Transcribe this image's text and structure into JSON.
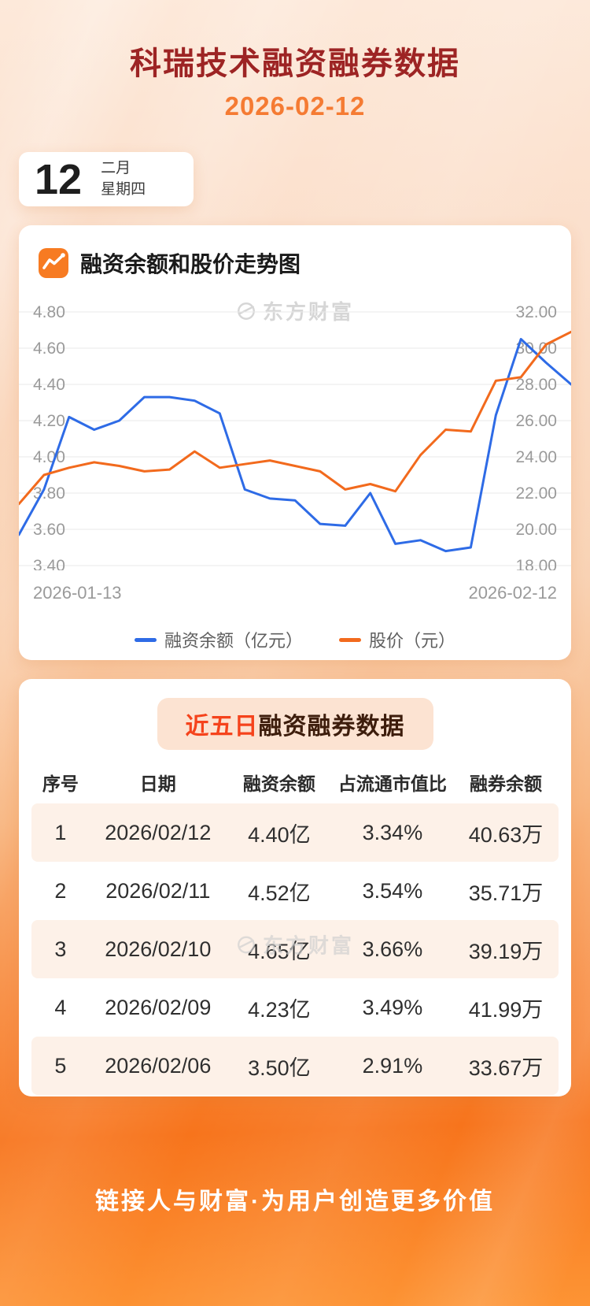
{
  "page": {
    "title": "科瑞技术融资融券数据",
    "date": "2026-02-12"
  },
  "colors": {
    "title": "#9d2424",
    "accent_orange": "#f7671f",
    "highlight_red": "#f5431c",
    "line_blue": "#2e6be6",
    "line_orange": "#f26a1d",
    "table_stripe": "#fdf1e8"
  },
  "date_card": {
    "day": "12",
    "month": "二月",
    "weekday": "星期四"
  },
  "chart_section": {
    "heading": "融资余额和股价走势图",
    "watermark": "东方财富",
    "x_start_label": "2026-01-13",
    "x_end_label": "2026-02-12"
  },
  "chart_data": {
    "type": "line",
    "title": "融资余额和股价走势图",
    "x": [
      "2026-01-13",
      "2026-01-14",
      "2026-01-15",
      "2026-01-16",
      "2026-01-19",
      "2026-01-20",
      "2026-01-21",
      "2026-01-22",
      "2026-01-23",
      "2026-01-26",
      "2026-01-27",
      "2026-01-28",
      "2026-01-29",
      "2026-01-30",
      "2026-02-02",
      "2026-02-03",
      "2026-02-04",
      "2026-02-05",
      "2026-02-06",
      "2026-02-09",
      "2026-02-10",
      "2026-02-11",
      "2026-02-12"
    ],
    "series": [
      {
        "name": "融资余额（亿元）",
        "axis": "left",
        "color": "#2e6be6",
        "values": [
          3.57,
          3.82,
          4.22,
          4.15,
          4.2,
          4.33,
          4.33,
          4.31,
          4.24,
          3.82,
          3.77,
          3.76,
          3.63,
          3.62,
          3.8,
          3.52,
          3.54,
          3.48,
          3.5,
          4.23,
          4.65,
          4.52,
          4.4
        ]
      },
      {
        "name": "股价（元）",
        "axis": "right",
        "color": "#f26a1d",
        "values": [
          21.4,
          23.0,
          23.4,
          23.7,
          23.5,
          23.2,
          23.3,
          24.3,
          23.4,
          23.6,
          23.8,
          23.5,
          23.2,
          22.2,
          22.5,
          22.1,
          24.1,
          25.5,
          25.4,
          28.2,
          28.4,
          30.2,
          30.9
        ]
      }
    ],
    "left_axis": {
      "min": 3.4,
      "max": 4.8,
      "ticks": [
        "4.80",
        "4.60",
        "4.40",
        "4.20",
        "4.00",
        "3.80",
        "3.60",
        "3.40"
      ]
    },
    "right_axis": {
      "min": 18.0,
      "max": 32.0,
      "ticks": [
        "32.00",
        "30.00",
        "28.00",
        "26.00",
        "24.00",
        "22.00",
        "20.00",
        "18.00"
      ]
    },
    "x_axis_labels": [
      "2026-01-13",
      "2026-02-12"
    ],
    "grid": true,
    "legend_position": "bottom"
  },
  "table_section": {
    "heading_highlight": "近五日",
    "heading_rest": "融资融券数据",
    "watermark": "东方财富",
    "columns": [
      "序号",
      "日期",
      "融资余额",
      "占流通市值比",
      "融券余额"
    ],
    "rows": [
      [
        "1",
        "2026/02/12",
        "4.40亿",
        "3.34%",
        "40.63万"
      ],
      [
        "2",
        "2026/02/11",
        "4.52亿",
        "3.54%",
        "35.71万"
      ],
      [
        "3",
        "2026/02/10",
        "4.65亿",
        "3.66%",
        "39.19万"
      ],
      [
        "4",
        "2026/02/09",
        "4.23亿",
        "3.49%",
        "41.99万"
      ],
      [
        "5",
        "2026/02/06",
        "3.50亿",
        "2.91%",
        "33.67万"
      ]
    ]
  },
  "footer": {
    "slogan": "链接人与财富·为用户创造更多价值"
  }
}
